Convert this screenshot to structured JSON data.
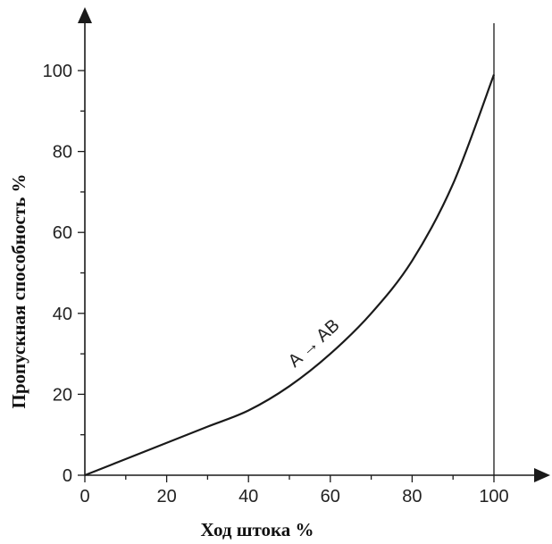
{
  "chart_data": {
    "type": "line",
    "xlabel": "Ход штока %",
    "ylabel": "Пропускная способность %",
    "xlim": [
      0,
      100
    ],
    "ylim": [
      0,
      100
    ],
    "x_ticks": [
      0,
      20,
      40,
      60,
      80,
      100
    ],
    "y_ticks": [
      0,
      20,
      40,
      60,
      80,
      100
    ],
    "grid": false,
    "series": [
      {
        "x": [
          0,
          10,
          20,
          30,
          40,
          50,
          60,
          70,
          80,
          90,
          100
        ],
        "y": [
          0,
          4,
          8,
          12,
          16,
          22,
          30,
          40,
          53,
          72,
          99
        ]
      }
    ],
    "annotation": "A → AB",
    "vertical_line_x": 100,
    "line_color": "#1a1a1a"
  }
}
